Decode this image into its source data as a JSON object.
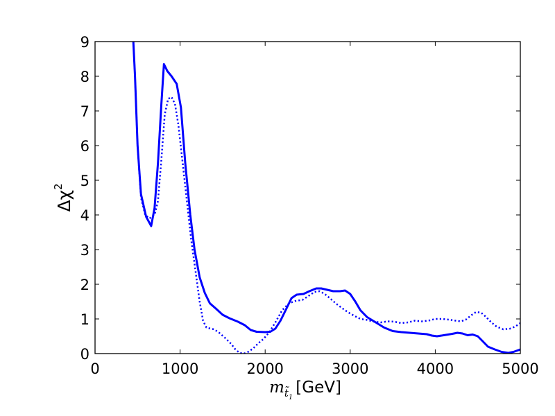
{
  "chart_data": {
    "type": "line",
    "xlabel": "[GeV]",
    "xlabel_symbol": "m",
    "xlabel_subscript": "t̃",
    "xlabel_subsubscript": "1",
    "ylabel_symbol": "Δχ",
    "ylabel_superscript": "2",
    "xlim": [
      0,
      5000
    ],
    "ylim": [
      0,
      9
    ],
    "xticks": [
      0,
      1000,
      2000,
      3000,
      4000,
      5000
    ],
    "yticks": [
      0,
      1,
      2,
      3,
      4,
      5,
      6,
      7,
      8,
      9
    ],
    "xtick_labels": [
      "0",
      "1000",
      "2000",
      "3000",
      "4000",
      "5000"
    ],
    "ytick_labels": [
      "0",
      "1",
      "2",
      "3",
      "4",
      "5",
      "6",
      "7",
      "8",
      "9"
    ],
    "grid": false,
    "legend": "none",
    "series": [
      {
        "style": "solid",
        "color": "#0000ff",
        "points": [
          [
            450,
            9.0
          ],
          [
            470,
            8.0
          ],
          [
            500,
            6.0
          ],
          [
            540,
            4.6
          ],
          [
            600,
            3.95
          ],
          [
            660,
            3.68
          ],
          [
            700,
            4.2
          ],
          [
            740,
            5.5
          ],
          [
            780,
            7.2
          ],
          [
            810,
            8.35
          ],
          [
            850,
            8.15
          ],
          [
            900,
            8.0
          ],
          [
            960,
            7.78
          ],
          [
            1010,
            7.1
          ],
          [
            1060,
            5.5
          ],
          [
            1120,
            4.0
          ],
          [
            1170,
            3.0
          ],
          [
            1230,
            2.2
          ],
          [
            1290,
            1.75
          ],
          [
            1350,
            1.45
          ],
          [
            1420,
            1.3
          ],
          [
            1500,
            1.12
          ],
          [
            1580,
            1.02
          ],
          [
            1680,
            0.92
          ],
          [
            1760,
            0.82
          ],
          [
            1830,
            0.68
          ],
          [
            1900,
            0.63
          ],
          [
            2000,
            0.62
          ],
          [
            2060,
            0.63
          ],
          [
            2120,
            0.72
          ],
          [
            2180,
            0.95
          ],
          [
            2250,
            1.3
          ],
          [
            2310,
            1.6
          ],
          [
            2370,
            1.7
          ],
          [
            2450,
            1.72
          ],
          [
            2520,
            1.8
          ],
          [
            2600,
            1.88
          ],
          [
            2660,
            1.88
          ],
          [
            2730,
            1.84
          ],
          [
            2800,
            1.8
          ],
          [
            2880,
            1.8
          ],
          [
            2940,
            1.82
          ],
          [
            3000,
            1.72
          ],
          [
            3060,
            1.5
          ],
          [
            3120,
            1.25
          ],
          [
            3200,
            1.05
          ],
          [
            3300,
            0.9
          ],
          [
            3400,
            0.75
          ],
          [
            3500,
            0.65
          ],
          [
            3600,
            0.62
          ],
          [
            3700,
            0.6
          ],
          [
            3800,
            0.58
          ],
          [
            3900,
            0.56
          ],
          [
            3960,
            0.52
          ],
          [
            4020,
            0.5
          ],
          [
            4100,
            0.53
          ],
          [
            4200,
            0.57
          ],
          [
            4260,
            0.6
          ],
          [
            4320,
            0.58
          ],
          [
            4380,
            0.53
          ],
          [
            4440,
            0.55
          ],
          [
            4500,
            0.5
          ],
          [
            4560,
            0.35
          ],
          [
            4620,
            0.2
          ],
          [
            4700,
            0.12
          ],
          [
            4780,
            0.05
          ],
          [
            4860,
            0.02
          ],
          [
            4920,
            0.05
          ],
          [
            5000,
            0.12
          ]
        ]
      },
      {
        "style": "dotted",
        "color": "#0000ff",
        "points": [
          [
            450,
            9.0
          ],
          [
            470,
            8.0
          ],
          [
            500,
            6.0
          ],
          [
            540,
            4.5
          ],
          [
            590,
            4.0
          ],
          [
            640,
            3.9
          ],
          [
            700,
            4.0
          ],
          [
            740,
            4.4
          ],
          [
            780,
            5.6
          ],
          [
            820,
            6.9
          ],
          [
            860,
            7.35
          ],
          [
            900,
            7.4
          ],
          [
            940,
            7.2
          ],
          [
            980,
            6.6
          ],
          [
            1030,
            5.5
          ],
          [
            1080,
            4.4
          ],
          [
            1130,
            3.3
          ],
          [
            1180,
            2.4
          ],
          [
            1230,
            1.5
          ],
          [
            1270,
            0.95
          ],
          [
            1310,
            0.75
          ],
          [
            1360,
            0.72
          ],
          [
            1400,
            0.7
          ],
          [
            1460,
            0.6
          ],
          [
            1530,
            0.45
          ],
          [
            1600,
            0.28
          ],
          [
            1650,
            0.12
          ],
          [
            1700,
            0.02
          ],
          [
            1750,
            0.0
          ],
          [
            1800,
            0.05
          ],
          [
            1860,
            0.15
          ],
          [
            1920,
            0.3
          ],
          [
            1980,
            0.42
          ],
          [
            2050,
            0.62
          ],
          [
            2120,
            0.9
          ],
          [
            2200,
            1.25
          ],
          [
            2280,
            1.45
          ],
          [
            2360,
            1.52
          ],
          [
            2440,
            1.55
          ],
          [
            2520,
            1.68
          ],
          [
            2580,
            1.78
          ],
          [
            2640,
            1.8
          ],
          [
            2700,
            1.72
          ],
          [
            2760,
            1.6
          ],
          [
            2830,
            1.45
          ],
          [
            2900,
            1.32
          ],
          [
            2970,
            1.2
          ],
          [
            3040,
            1.1
          ],
          [
            3120,
            1.0
          ],
          [
            3200,
            0.97
          ],
          [
            3280,
            0.92
          ],
          [
            3360,
            0.9
          ],
          [
            3440,
            0.93
          ],
          [
            3520,
            0.92
          ],
          [
            3600,
            0.88
          ],
          [
            3680,
            0.9
          ],
          [
            3760,
            0.95
          ],
          [
            3840,
            0.93
          ],
          [
            3920,
            0.95
          ],
          [
            4000,
            1.0
          ],
          [
            4080,
            1.0
          ],
          [
            4160,
            0.98
          ],
          [
            4240,
            0.95
          ],
          [
            4300,
            0.93
          ],
          [
            4360,
            0.98
          ],
          [
            4420,
            1.1
          ],
          [
            4480,
            1.2
          ],
          [
            4540,
            1.18
          ],
          [
            4600,
            1.05
          ],
          [
            4660,
            0.9
          ],
          [
            4720,
            0.78
          ],
          [
            4800,
            0.7
          ],
          [
            4880,
            0.72
          ],
          [
            4940,
            0.78
          ],
          [
            5000,
            0.88
          ]
        ]
      }
    ]
  }
}
